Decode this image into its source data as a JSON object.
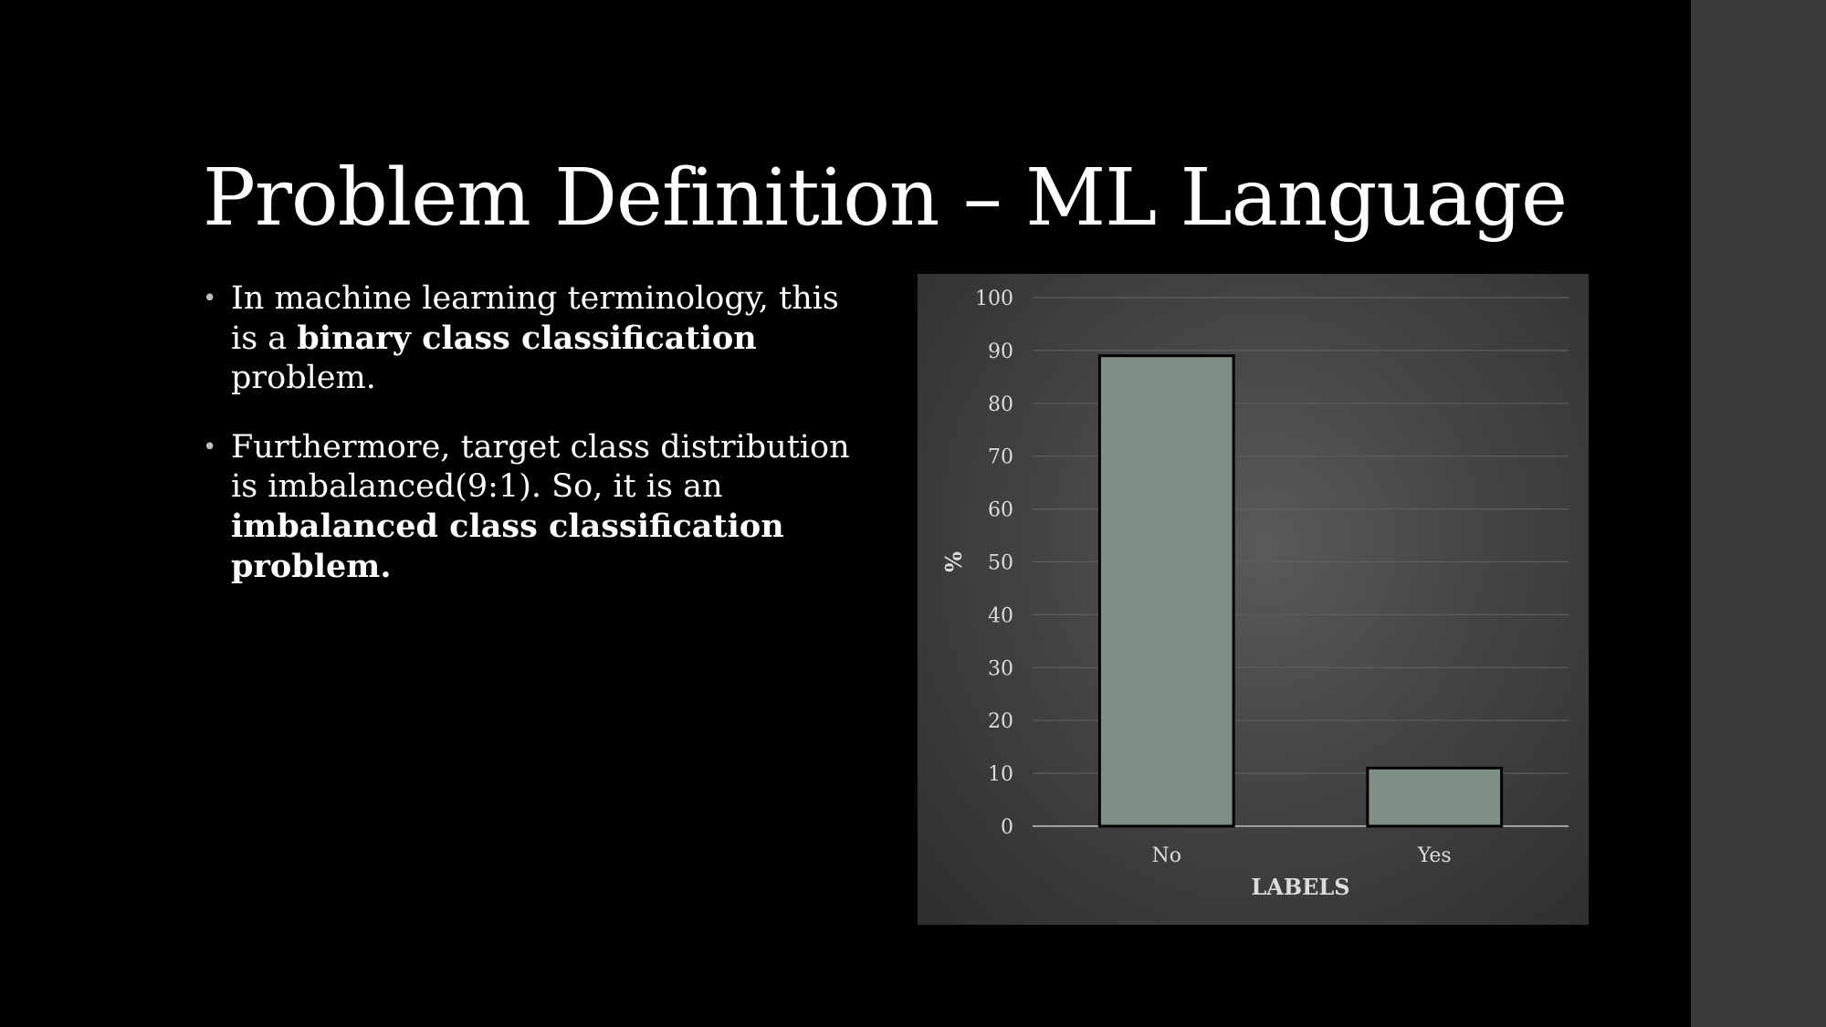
{
  "slide": {
    "title": "Problem Definition – ML Language",
    "bullets": [
      {
        "segments": [
          {
            "text": "In machine learning terminology, this is a ",
            "bold": false
          },
          {
            "text": "binary class classification",
            "bold": true
          },
          {
            "text": " problem.",
            "bold": false
          }
        ]
      },
      {
        "segments": [
          {
            "text": "Furthermore, target class distribution is imbalanced(9:1). So, it is an ",
            "bold": false
          },
          {
            "text": "imbalanced class classification problem.",
            "bold": true
          }
        ]
      }
    ]
  },
  "colors": {
    "background": "#000000",
    "text": "#ffffff",
    "bar_fill": "#7f8f86",
    "bar_stroke": "#000000",
    "gridline": "#5e5e5e",
    "axis_line": "#a0a0a0"
  },
  "chart_data": {
    "type": "bar",
    "categories": [
      "No",
      "Yes"
    ],
    "values": [
      89,
      11
    ],
    "xlabel": "LABELS",
    "ylabel": "%",
    "ylim": [
      0,
      100
    ],
    "yticks": [
      0,
      10,
      20,
      30,
      40,
      50,
      60,
      70,
      80,
      90,
      100
    ],
    "grid": true,
    "legend": "none"
  }
}
